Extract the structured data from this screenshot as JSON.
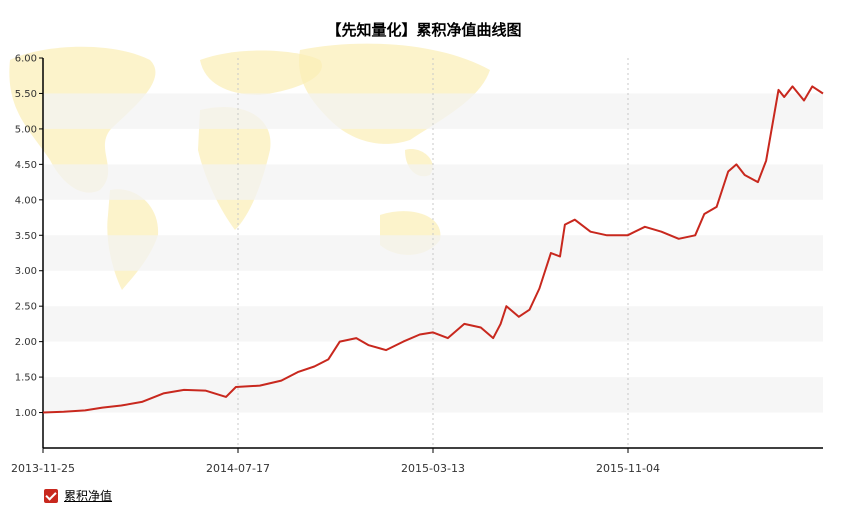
{
  "chart_data": {
    "type": "line",
    "title": "【先知量化】累积净值曲线图",
    "ylim": [
      0.5,
      6.0
    ],
    "yticks": [
      "6.00",
      "5.50",
      "5.00",
      "4.50",
      "4.00",
      "3.50",
      "3.00",
      "2.50",
      "2.00",
      "1.50",
      "1.00"
    ],
    "xticks": [
      "2013-11-25",
      "2014-07-17",
      "2015-03-13",
      "2015-11-04"
    ],
    "grid": true,
    "legend_position": "bottom-left",
    "series": [
      {
        "name": "累积净值",
        "color": "#c8281e",
        "points": [
          [
            "2013-11-25",
            1.0
          ],
          [
            "2013-12-20",
            1.01
          ],
          [
            "2014-01-15",
            1.03
          ],
          [
            "2014-02-05",
            1.07
          ],
          [
            "2014-02-28",
            1.1
          ],
          [
            "2014-03-25",
            1.15
          ],
          [
            "2014-04-20",
            1.27
          ],
          [
            "2014-05-15",
            1.32
          ],
          [
            "2014-06-10",
            1.31
          ],
          [
            "2014-07-05",
            1.22
          ],
          [
            "2014-07-17",
            1.36
          ],
          [
            "2014-08-15",
            1.38
          ],
          [
            "2014-09-10",
            1.45
          ],
          [
            "2014-09-30",
            1.57
          ],
          [
            "2014-10-20",
            1.65
          ],
          [
            "2014-11-06",
            1.75
          ],
          [
            "2014-11-20",
            2.0
          ],
          [
            "2014-12-10",
            2.05
          ],
          [
            "2014-12-25",
            1.95
          ],
          [
            "2015-01-15",
            1.88
          ],
          [
            "2015-02-05",
            2.0
          ],
          [
            "2015-02-25",
            2.1
          ],
          [
            "2015-03-13",
            2.13
          ],
          [
            "2015-03-31",
            2.05
          ],
          [
            "2015-04-20",
            2.25
          ],
          [
            "2015-05-10",
            2.2
          ],
          [
            "2015-05-25",
            2.05
          ],
          [
            "2015-06-03",
            2.25
          ],
          [
            "2015-06-10",
            2.5
          ],
          [
            "2015-06-25",
            2.35
          ],
          [
            "2015-07-08",
            2.45
          ],
          [
            "2015-07-20",
            2.75
          ],
          [
            "2015-08-03",
            3.25
          ],
          [
            "2015-08-14",
            3.2
          ],
          [
            "2015-08-20",
            3.65
          ],
          [
            "2015-09-01",
            3.72
          ],
          [
            "2015-09-20",
            3.55
          ],
          [
            "2015-10-10",
            3.5
          ],
          [
            "2015-11-04",
            3.5
          ],
          [
            "2015-11-25",
            3.62
          ],
          [
            "2015-12-15",
            3.55
          ],
          [
            "2016-01-05",
            3.45
          ],
          [
            "2016-01-25",
            3.5
          ],
          [
            "2016-02-05",
            3.8
          ],
          [
            "2016-02-20",
            3.9
          ],
          [
            "2016-03-05",
            4.4
          ],
          [
            "2016-03-15",
            4.5
          ],
          [
            "2016-03-25",
            4.35
          ],
          [
            "2016-04-10",
            4.25
          ],
          [
            "2016-04-20",
            4.55
          ],
          [
            "2016-05-05",
            5.55
          ],
          [
            "2016-05-12",
            5.45
          ],
          [
            "2016-05-22",
            5.6
          ],
          [
            "2016-06-05",
            5.4
          ],
          [
            "2016-06-15",
            5.6
          ],
          [
            "2016-06-28",
            5.5
          ]
        ]
      }
    ]
  },
  "legend": {
    "label": "累积净值"
  }
}
